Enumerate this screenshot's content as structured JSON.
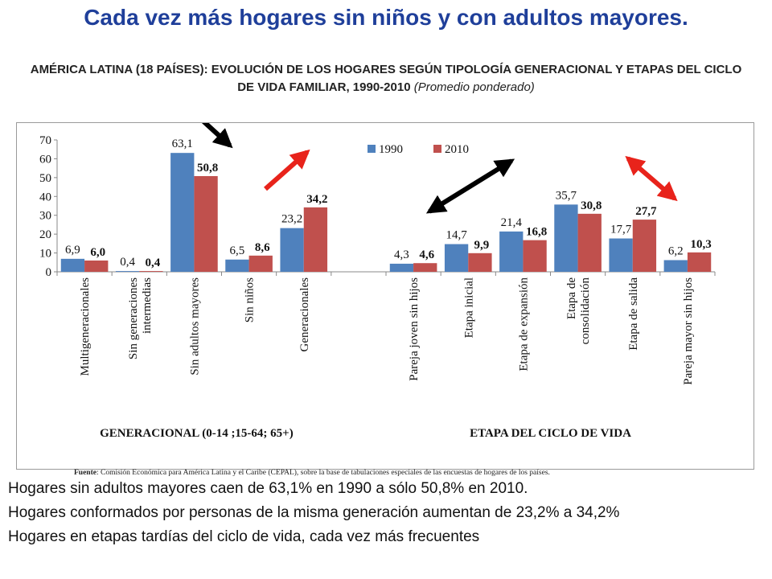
{
  "title": "Cada vez más hogares sin niños y con adultos mayores.",
  "subtitle_main": "AMÉRICA LATINA (18 PAÍSES): EVOLUCIÓN DE LOS HOGARES SEGÚN TIPOLOGÍA GENERACIONAL Y ETAPAS DEL CICLO DE VIDA FAMILIAR, 1990-2010",
  "subtitle_note": "(Promedio ponderado)",
  "source_label": "Fuente",
  "source_text": ": Comisión Económica para América Latina y el Caribe (CEPAL), sobre la base de tabulaciones especiales de las encuestas de hogares de los países.",
  "bullets": [
    "Hogares sin adultos mayores caen de 63,1% en 1990 a sólo 50,8% en 2010.",
    "Hogares conformados por personas de la misma generación aumentan de 23,2% a 34,2%",
    "Hogares en etapas tardías del ciclo de vida, cada vez más frecuentes"
  ],
  "chart_data": {
    "type": "bar",
    "ylim": [
      0,
      70
    ],
    "yticks": [
      "0",
      "10",
      "20",
      "30",
      "40",
      "50",
      "60",
      "70"
    ],
    "legend_position": "top-center",
    "colors": {
      "1990": "#4f81bd",
      "2010": "#c0504d"
    },
    "groups": [
      {
        "label": "GENERACIONAL (0-14 ;15-64; 65+)",
        "categories": [
          [
            "Multigeneracionales"
          ],
          [
            "Sin generaciones",
            "intermedias"
          ],
          [
            "Sin adultos mayores"
          ],
          [
            "Sin niños"
          ],
          [
            "Generacionales"
          ]
        ]
      },
      {
        "label": "ETAPA DEL CICLO DE VIDA",
        "categories": [
          [
            "Pareja joven sin hijos"
          ],
          [
            "Etapa inicial"
          ],
          [
            "Etapa de expansión"
          ],
          [
            "Etapa de",
            "consolidación"
          ],
          [
            "Etapa de salida"
          ],
          [
            "Pareja mayor sin hijos"
          ]
        ]
      }
    ],
    "series": [
      {
        "name": "1990",
        "values": [
          6.9,
          0.4,
          63.1,
          6.5,
          23.2,
          4.3,
          14.7,
          21.4,
          35.7,
          17.7,
          6.2
        ],
        "labels": [
          "6,9",
          "0,4",
          "63,1",
          "6,5",
          "23,2",
          "4,3",
          "14,7",
          "21,4",
          "35,7",
          "17,7",
          "6,2"
        ]
      },
      {
        "name": "2010",
        "values": [
          6.0,
          0.4,
          50.8,
          8.6,
          34.2,
          4.6,
          9.9,
          16.8,
          30.8,
          27.7,
          10.3
        ],
        "labels": [
          "6,0",
          "0,4",
          "50,8",
          "8,6",
          "34,2",
          "4,6",
          "9,9",
          "16,8",
          "30,8",
          "27,7",
          "10,3"
        ]
      }
    ],
    "arrows": [
      {
        "name": "decrease-arrow",
        "color": "#000000",
        "style": "single"
      },
      {
        "name": "increase-arrow-generacionales",
        "color": "#e8231b",
        "style": "single"
      },
      {
        "name": "shift-arrow-ciclo",
        "color": "#000000",
        "style": "double"
      },
      {
        "name": "increase-arrow-ciclo",
        "color": "#e8231b",
        "style": "double"
      }
    ]
  }
}
